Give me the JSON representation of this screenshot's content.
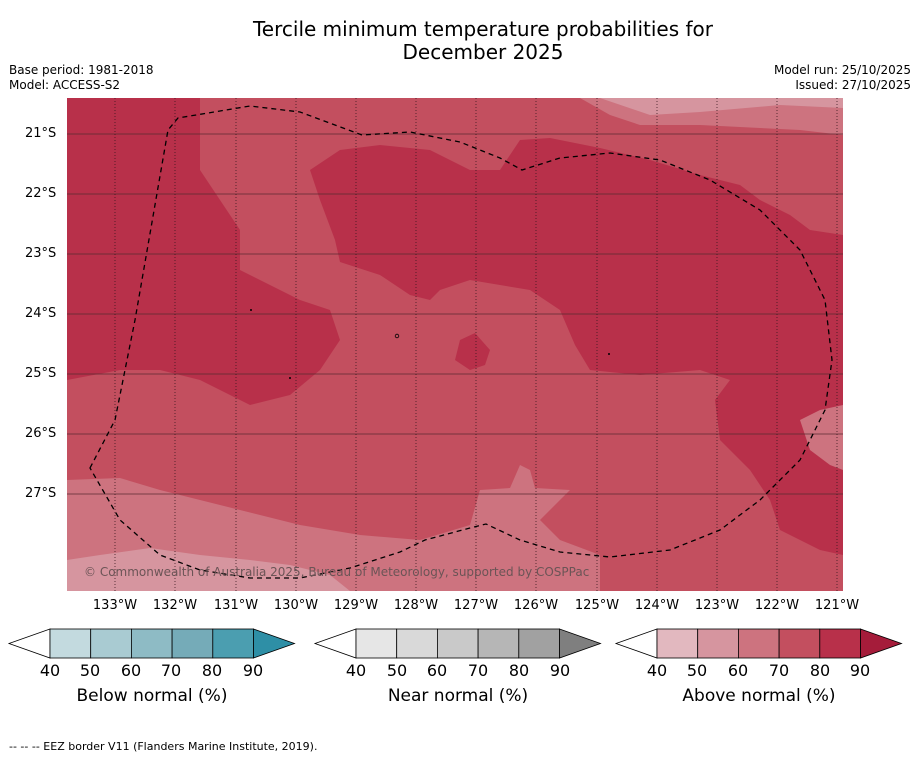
{
  "title_line1": "Tercile minimum temperature probabilities for",
  "title_line2": "December 2025",
  "base_period": "Base period: 1981-2018",
  "model": "Model: ACCESS-S2",
  "model_run": "Model run: 25/10/2025",
  "issued": "Issued: 27/10/2025",
  "copyright": "© Commonwealth of Australia 2025, Bureau of Meteorology, supported by COSPPac",
  "lat_labels": [
    "21°S",
    "22°S",
    "23°S",
    "24°S",
    "25°S",
    "26°S",
    "27°S"
  ],
  "lon_labels": [
    "133°W",
    "132°W",
    "131°W",
    "130°W",
    "129°W",
    "128°W",
    "127°W",
    "126°W",
    "125°W",
    "124°W",
    "123°W",
    "122°W",
    "121°W"
  ],
  "colorbars": [
    {
      "label": "Below normal (%)",
      "ticks": [
        "40",
        "50",
        "60",
        "70",
        "80",
        "90"
      ],
      "colors": [
        "#c3dadf",
        "#a9cbd2",
        "#8ebbc5",
        "#75abb8",
        "#4b9eb0",
        "#2e8fa6"
      ]
    },
    {
      "label": "Near normal (%)",
      "ticks": [
        "40",
        "50",
        "60",
        "70",
        "80",
        "90"
      ],
      "colors": [
        "#e6e6e6",
        "#d9d9d9",
        "#c9c9c9",
        "#b6b6b6",
        "#a1a1a1",
        "#7f7f7f"
      ]
    },
    {
      "label": "Above normal (%)",
      "ticks": [
        "40",
        "50",
        "60",
        "70",
        "80",
        "90"
      ],
      "colors": [
        "#e2b8bf",
        "#d6959f",
        "#cd737f",
        "#c34f5f",
        "#b8304a",
        "#a51c3a"
      ]
    }
  ],
  "footnote": "-- -- -- EEZ border V11 (Flanders Marine Institute, 2019)."
}
